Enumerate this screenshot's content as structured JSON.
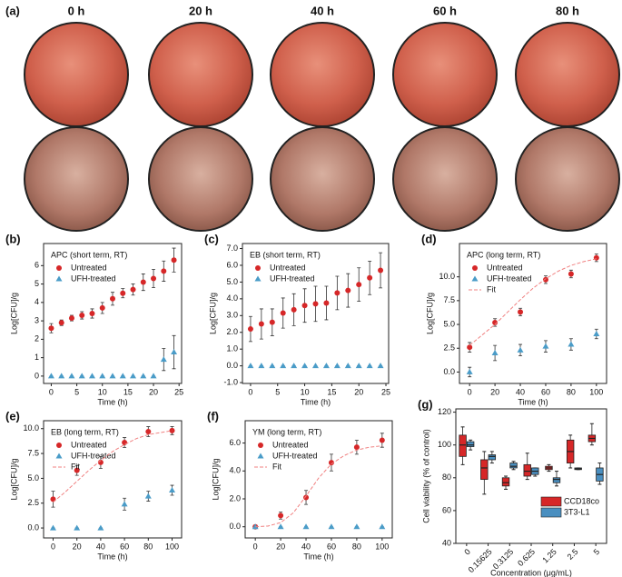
{
  "panel_a": {
    "label": "(a)",
    "times": [
      "0 h",
      "20 h",
      "40 h",
      "60 h",
      "80 h"
    ]
  },
  "chart_data": [
    {
      "type": "errorbar",
      "panel": "(b)",
      "title": "APC (short term, RT)",
      "xlabel": "Time (h)",
      "ylabel": "Log[CFU]/g",
      "x": [
        0,
        2,
        4,
        6,
        8,
        10,
        12,
        14,
        16,
        18,
        20,
        22,
        24
      ],
      "xlim": [
        -1.5,
        25.5
      ],
      "xticks": [
        0,
        5,
        10,
        15,
        20,
        25
      ],
      "ylim": [
        -0.4,
        7.2
      ],
      "yticks": [
        0,
        1,
        2,
        3,
        4,
        5,
        6
      ],
      "series": [
        {
          "name": "Untreated",
          "color": "#d62728",
          "marker": "circle",
          "values": [
            2.6,
            2.9,
            3.15,
            3.3,
            3.4,
            3.7,
            4.2,
            4.5,
            4.7,
            5.1,
            5.3,
            5.7,
            6.3
          ],
          "errors": [
            0.25,
            0.15,
            0.15,
            0.2,
            0.25,
            0.3,
            0.35,
            0.25,
            0.3,
            0.45,
            0.5,
            0.55,
            0.65
          ]
        },
        {
          "name": "UFH-treated",
          "color": "#4a9cc8",
          "marker": "triangle",
          "values": [
            0,
            0,
            0,
            0,
            0,
            0,
            0,
            0,
            0,
            0,
            0,
            0.9,
            1.3
          ],
          "errors": [
            0,
            0,
            0,
            0,
            0,
            0,
            0,
            0,
            0,
            0,
            0,
            0.6,
            0.9
          ]
        }
      ]
    },
    {
      "type": "errorbar",
      "panel": "(c)",
      "title": "EB (short term, RT)",
      "xlabel": "Time (h)",
      "ylabel": "Log[CFU]/g",
      "x": [
        0,
        2,
        4,
        6,
        8,
        10,
        12,
        14,
        16,
        18,
        20,
        22,
        24
      ],
      "xlim": [
        -1.5,
        25.5
      ],
      "xticks": [
        0,
        5,
        10,
        15,
        20,
        25
      ],
      "ylim": [
        -1.05,
        7.3
      ],
      "yticks": [
        {
          "value": -1,
          "label": "-1.0"
        },
        {
          "value": 0,
          "label": "0.0"
        },
        {
          "value": 1,
          "label": "1.0"
        },
        {
          "value": 2,
          "label": "2.0"
        },
        {
          "value": 3,
          "label": "3.0"
        },
        {
          "value": 4,
          "label": "4.0"
        },
        {
          "value": 5,
          "label": "5.0"
        },
        {
          "value": 6,
          "label": "6.0"
        },
        {
          "value": 7,
          "label": "7.0"
        }
      ],
      "series": [
        {
          "name": "Untreated",
          "color": "#d62728",
          "marker": "circle",
          "values": [
            2.2,
            2.5,
            2.6,
            3.15,
            3.35,
            3.6,
            3.7,
            3.75,
            4.35,
            4.5,
            4.85,
            5.25,
            5.7
          ],
          "errors": [
            0.75,
            0.9,
            0.8,
            0.9,
            0.95,
            1.0,
            1.05,
            1.0,
            1.0,
            1.0,
            1.0,
            1.0,
            1.05
          ]
        },
        {
          "name": "UFH-treated",
          "color": "#4a9cc8",
          "marker": "triangle",
          "values": [
            0,
            0,
            0,
            0,
            0,
            0,
            0,
            0,
            0,
            0,
            0,
            0,
            0
          ],
          "errors": [
            0,
            0,
            0,
            0,
            0,
            0,
            0,
            0,
            0,
            0,
            0,
            0,
            0
          ]
        }
      ]
    },
    {
      "type": "errorbar",
      "panel": "(d)",
      "title": "APC (long term, RT)",
      "xlabel": "Time (h)",
      "ylabel": "Log[CFU]/g",
      "x": [
        0,
        20,
        40,
        60,
        80,
        100
      ],
      "xlim": [
        -8,
        108
      ],
      "xticks": [
        0,
        20,
        40,
        60,
        80,
        100
      ],
      "ylim": [
        -1.2,
        13.5
      ],
      "yticks": [
        {
          "value": 0,
          "label": "0.0"
        },
        2.5,
        {
          "value": 5,
          "label": "5.0"
        },
        7.5,
        {
          "value": 10,
          "label": "10.0"
        }
      ],
      "series": [
        {
          "name": "Untreated",
          "color": "#d62728",
          "marker": "circle",
          "values": [
            2.6,
            5.2,
            6.3,
            9.7,
            10.3,
            12.0
          ],
          "errors": [
            0.5,
            0.4,
            0.4,
            0.4,
            0.4,
            0.4
          ]
        },
        {
          "name": "UFH-treated",
          "color": "#4a9cc8",
          "marker": "triangle",
          "values": [
            0,
            2.0,
            2.3,
            2.7,
            2.9,
            4.0
          ],
          "errors": [
            0.5,
            0.8,
            0.6,
            0.6,
            0.6,
            0.5
          ]
        },
        {
          "name": "Fit",
          "color": "#f08080",
          "marker": "line",
          "x": [
            0,
            10,
            20,
            30,
            40,
            50,
            60,
            70,
            80,
            90,
            100
          ],
          "values": [
            2.8,
            3.9,
            5.0,
            6.3,
            7.6,
            8.8,
            9.8,
            10.6,
            11.2,
            11.6,
            11.9
          ]
        }
      ]
    },
    {
      "type": "errorbar",
      "panel": "(e)",
      "title": "EB (long term, RT)",
      "xlabel": "Time (h)",
      "ylabel": "Log[CFU]/g",
      "x": [
        0,
        20,
        40,
        60,
        80,
        100
      ],
      "xlim": [
        -8,
        108
      ],
      "xticks": [
        0,
        20,
        40,
        60,
        80,
        100
      ],
      "ylim": [
        -1,
        10.8
      ],
      "yticks": [
        {
          "value": 0,
          "label": "0.0"
        },
        2.5,
        {
          "value": 5,
          "label": "5.0"
        },
        7.5,
        {
          "value": 10,
          "label": "10.0"
        }
      ],
      "series": [
        {
          "name": "Untreated",
          "color": "#d62728",
          "marker": "circle",
          "values": [
            2.9,
            5.8,
            6.6,
            8.6,
            9.7,
            9.8
          ],
          "errors": [
            0.8,
            0.5,
            0.6,
            0.5,
            0.5,
            0.4
          ]
        },
        {
          "name": "UFH-treated",
          "color": "#4a9cc8",
          "marker": "triangle",
          "values": [
            0,
            0,
            0,
            2.4,
            3.2,
            3.8
          ],
          "errors": [
            0,
            0,
            0,
            0.6,
            0.5,
            0.5
          ]
        },
        {
          "name": "Fit",
          "color": "#f08080",
          "marker": "line",
          "x": [
            0,
            10,
            20,
            30,
            40,
            50,
            60,
            70,
            80,
            90,
            100
          ],
          "values": [
            2.6,
            3.6,
            4.7,
            5.8,
            6.8,
            7.7,
            8.4,
            9.0,
            9.4,
            9.6,
            9.8
          ]
        }
      ]
    },
    {
      "type": "errorbar",
      "panel": "(f)",
      "title": "YM (long term, RT)",
      "xlabel": "Time (h)",
      "ylabel": "Log[CFU]/g",
      "x": [
        0,
        20,
        40,
        60,
        80,
        100
      ],
      "xlim": [
        -8,
        108
      ],
      "xticks": [
        0,
        20,
        40,
        60,
        80,
        100
      ],
      "ylim": [
        -0.8,
        7.6
      ],
      "yticks": [
        {
          "value": 0,
          "label": "0.0"
        },
        {
          "value": 2,
          "label": "2.0"
        },
        {
          "value": 4,
          "label": "4.0"
        },
        {
          "value": 6,
          "label": "6.0"
        }
      ],
      "series": [
        {
          "name": "Untreated",
          "color": "#d62728",
          "marker": "circle",
          "values": [
            0,
            0.8,
            2.1,
            4.6,
            5.7,
            6.2
          ],
          "errors": [
            0,
            0.25,
            0.5,
            0.6,
            0.5,
            0.5
          ]
        },
        {
          "name": "UFH-treated",
          "color": "#4a9cc8",
          "marker": "triangle",
          "values": [
            0,
            0,
            0,
            0,
            0,
            0
          ],
          "errors": [
            0,
            0,
            0,
            0,
            0,
            0
          ]
        },
        {
          "name": "Fit",
          "color": "#f08080",
          "marker": "line",
          "x": [
            0,
            10,
            20,
            30,
            40,
            50,
            60,
            70,
            80,
            90,
            100
          ],
          "values": [
            0.0,
            0.05,
            0.3,
            1.0,
            2.2,
            3.5,
            4.5,
            5.1,
            5.5,
            5.7,
            5.8
          ]
        }
      ]
    },
    {
      "type": "box",
      "panel": "(g)",
      "xlabel": "Concentration (μg/mL)",
      "ylabel": "Cell viability (% of control)",
      "categories": [
        "0",
        "0.15625",
        "0.3125",
        "0.625",
        "1.25",
        "2.5",
        "5"
      ],
      "ylim": [
        40,
        122
      ],
      "yticks": [
        40,
        60,
        80,
        100,
        120
      ],
      "legend": "lower right",
      "series": [
        {
          "name": "CCD18co",
          "color": "#d62728",
          "min": [
            88,
            70,
            73,
            79,
            84,
            86,
            100
          ],
          "q1": [
            93,
            79,
            75,
            81,
            85,
            89,
            102
          ],
          "median": [
            100,
            86,
            77,
            84,
            86,
            96,
            104
          ],
          "q3": [
            106,
            91,
            80,
            88,
            87,
            103,
            106
          ],
          "max": [
            111,
            96,
            81,
            95,
            88,
            106,
            113
          ]
        },
        {
          "name": "3T3-L1",
          "color": "#4a8fc0",
          "min": [
            97,
            89,
            85,
            81,
            75,
            85,
            76
          ],
          "q1": [
            99,
            91,
            86,
            82,
            77,
            85,
            78
          ],
          "median": [
            100,
            93,
            87,
            84,
            79,
            85.5,
            82
          ],
          "q3": [
            102,
            94,
            89,
            86,
            80,
            86,
            86
          ],
          "max": [
            103,
            96,
            90,
            86,
            84,
            86,
            89
          ]
        }
      ]
    }
  ]
}
